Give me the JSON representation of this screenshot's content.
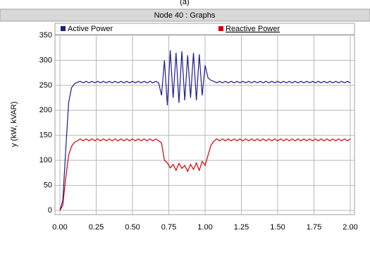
{
  "chart_data": {
    "type": "line",
    "caption": "(a)",
    "title": "Node 40 : Graphs",
    "ylabel": "y (kW, kVAR)",
    "x": [
      0,
      0.02,
      0.04,
      0.06,
      0.08,
      0.1,
      0.12,
      0.14,
      0.16,
      0.18,
      0.2,
      0.22,
      0.24,
      0.26,
      0.28,
      0.3,
      0.32,
      0.34,
      0.36,
      0.38,
      0.4,
      0.42,
      0.44,
      0.46,
      0.48,
      0.5,
      0.52,
      0.54,
      0.56,
      0.58,
      0.6,
      0.62,
      0.64,
      0.66,
      0.68,
      0.7,
      0.72,
      0.74,
      0.76,
      0.78,
      0.8,
      0.82,
      0.84,
      0.86,
      0.88,
      0.9,
      0.92,
      0.94,
      0.96,
      0.98,
      1,
      1.02,
      1.04,
      1.06,
      1.08,
      1.1,
      1.12,
      1.14,
      1.16,
      1.18,
      1.2,
      1.22,
      1.24,
      1.26,
      1.28,
      1.3,
      1.32,
      1.34,
      1.36,
      1.38,
      1.4,
      1.42,
      1.44,
      1.46,
      1.48,
      1.5,
      1.52,
      1.54,
      1.56,
      1.58,
      1.6,
      1.62,
      1.64,
      1.66,
      1.68,
      1.7,
      1.72,
      1.74,
      1.76,
      1.78,
      1.8,
      1.82,
      1.84,
      1.86,
      1.88,
      1.9,
      1.92,
      1.94,
      1.96,
      1.98,
      2
    ],
    "series": [
      {
        "name": "Active Power",
        "color": "#1c1c8e",
        "values": [
          0,
          20,
          120,
          215,
          245,
          253,
          256,
          258,
          255,
          258,
          255,
          258,
          255,
          258,
          255,
          258,
          255,
          258,
          255,
          258,
          255,
          258,
          255,
          258,
          255,
          258,
          255,
          258,
          255,
          258,
          255,
          258,
          255,
          258,
          255,
          230,
          300,
          210,
          320,
          225,
          315,
          215,
          318,
          220,
          310,
          225,
          315,
          220,
          312,
          230,
          290,
          265,
          260,
          258,
          255,
          258,
          255,
          258,
          255,
          258,
          255,
          258,
          255,
          258,
          255,
          258,
          255,
          258,
          255,
          258,
          255,
          258,
          255,
          258,
          255,
          258,
          255,
          258,
          255,
          258,
          255,
          258,
          255,
          258,
          255,
          258,
          255,
          258,
          255,
          258,
          255,
          258,
          255,
          258,
          255,
          258,
          255,
          258,
          255,
          258,
          255
        ]
      },
      {
        "name": "Reactive Power",
        "color": "#d40000",
        "values": [
          0,
          10,
          65,
          110,
          128,
          136,
          139,
          143,
          139,
          143,
          139,
          143,
          139,
          143,
          139,
          143,
          139,
          143,
          139,
          143,
          139,
          143,
          139,
          143,
          139,
          143,
          139,
          143,
          139,
          143,
          139,
          143,
          139,
          143,
          139,
          135,
          100,
          95,
          85,
          92,
          80,
          94,
          84,
          90,
          78,
          92,
          82,
          95,
          80,
          98,
          90,
          110,
          130,
          138,
          143,
          139,
          143,
          139,
          143,
          139,
          143,
          139,
          143,
          139,
          143,
          139,
          143,
          139,
          143,
          139,
          143,
          139,
          143,
          139,
          143,
          139,
          143,
          139,
          143,
          139,
          143,
          139,
          143,
          139,
          143,
          139,
          143,
          139,
          143,
          139,
          143,
          139,
          143,
          139,
          143,
          139,
          143,
          139,
          143,
          139,
          143
        ]
      }
    ],
    "xlim": [
      0,
      2
    ],
    "xticks": [
      {
        "value": 0,
        "label": "0.00"
      },
      {
        "value": 0.25,
        "label": "0.25"
      },
      {
        "value": 0.5,
        "label": "0.50"
      },
      {
        "value": 0.75,
        "label": "0.75"
      },
      {
        "value": 1,
        "label": "1.00"
      },
      {
        "value": 1.25,
        "label": "1.25"
      },
      {
        "value": 1.5,
        "label": "1.50"
      },
      {
        "value": 1.75,
        "label": "1.75"
      },
      {
        "value": 2,
        "label": "2.00"
      }
    ],
    "ylim": [
      0,
      350
    ],
    "yticks": [
      0,
      50,
      100,
      150,
      200,
      250,
      300,
      350
    ],
    "grid": true
  }
}
